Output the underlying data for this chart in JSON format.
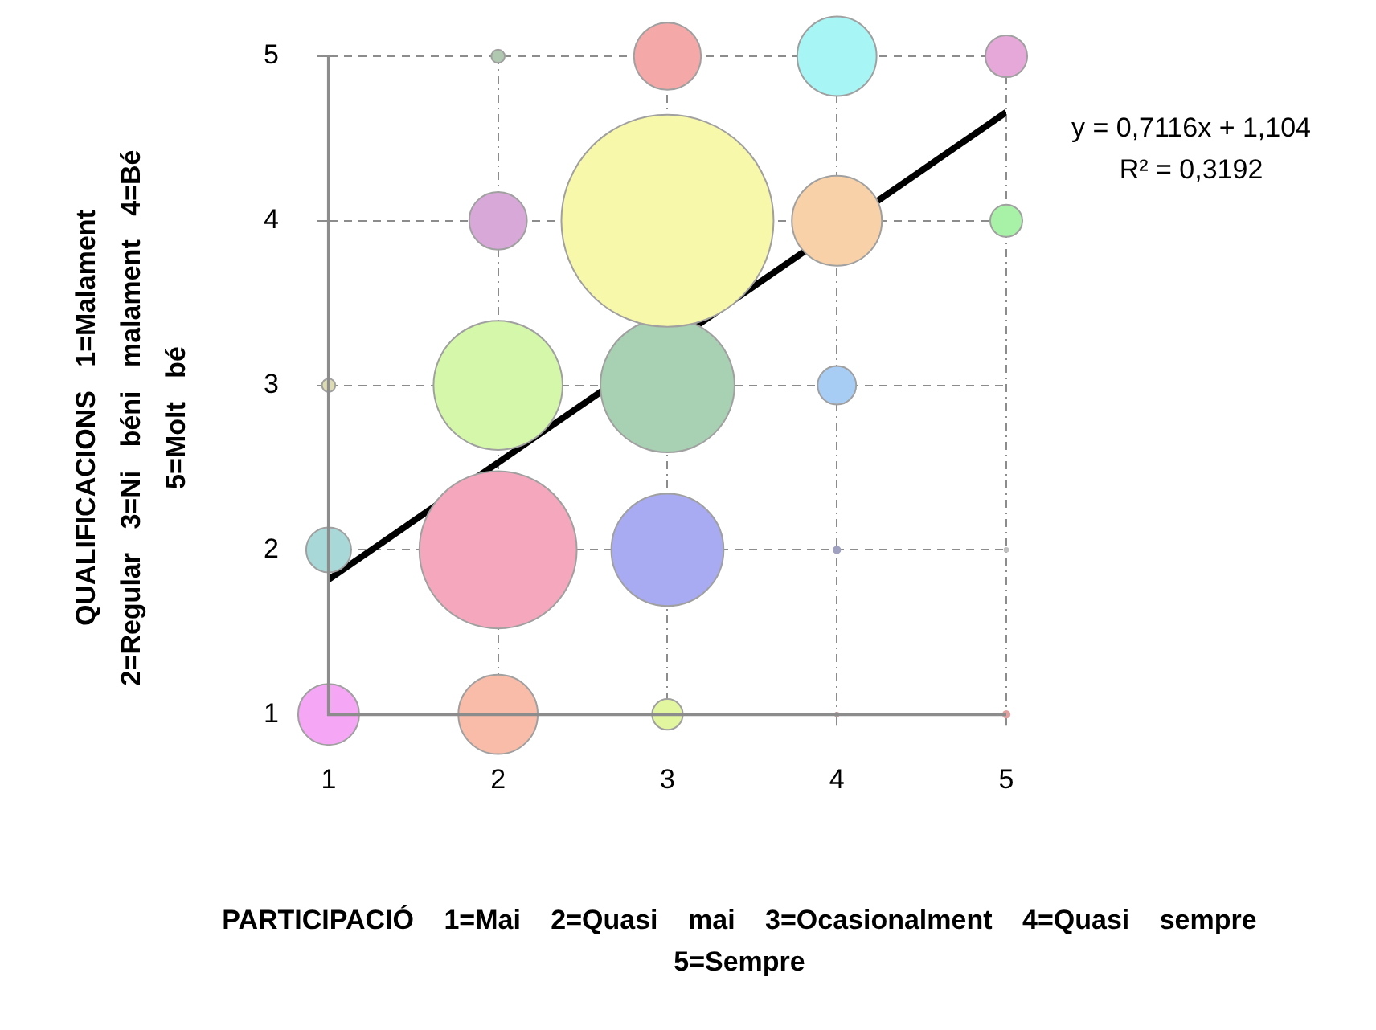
{
  "chart_data": {
    "type": "bubble",
    "xlabel": "PARTICIPACIÓ 1=Mai 2=Quasi mai 3=Ocasionalment 4=Quasi sempre 5=Sempre",
    "ylabel": "QUALIFICACIONS 1=Malament 2=Regular 3=Ni béni malament 4=Bé 5=Molt bé",
    "annotations": [
      "y = 0,7116x + 1,104",
      "R² = 0,3192"
    ],
    "xlim": [
      1,
      5
    ],
    "xticks": [
      1,
      2,
      3,
      4,
      5
    ],
    "ylim": [
      1,
      5
    ],
    "yticks": [
      1,
      2,
      3,
      4,
      5
    ],
    "grid": true,
    "legend": false,
    "series": [
      {
        "type": "bubble",
        "x": [
          1,
          2,
          3,
          4,
          5,
          1,
          2,
          3,
          4,
          5,
          1,
          2,
          3,
          4,
          2,
          3,
          4,
          5,
          2,
          3,
          4,
          5
        ],
        "values": [
          1,
          1,
          1,
          1,
          1,
          2,
          2,
          2,
          2,
          2,
          3,
          3,
          3,
          3,
          4,
          4,
          4,
          4,
          5,
          5,
          5,
          5
        ],
        "sizes": [
          0.083,
          0.14,
          0.021,
          0.0003,
          0.001,
          0.045,
          0.55,
          0.28,
          0.001,
          0.0003,
          0.004,
          0.37,
          0.4,
          0.033,
          0.074,
          1,
          0.18,
          0.023,
          0.004,
          0.1,
          0.14,
          0.039
        ],
        "colors": [
          "#f5a6f5",
          "#f8bca8",
          "#e2f59f",
          "#c0a0a0",
          "#e0a0a0",
          "#a8d8d8",
          "#f5a8bd",
          "#a8aaf2",
          "#a0a0c0",
          "#c0c0c0",
          "#dcdcb0",
          "#d5f7aa",
          "#a8d0b2",
          "#a8cdf5",
          "#d8a8d8",
          "#f8f8aa",
          "#f8d1a8",
          "#a8f2a8",
          "#b0c8b0",
          "#f5a8a8",
          "#a8f5f5",
          "#e6a8d8"
        ]
      },
      {
        "type": "line",
        "x": [
          1,
          5
        ],
        "values": [
          1.82,
          4.66
        ],
        "color": "#000000"
      }
    ]
  }
}
